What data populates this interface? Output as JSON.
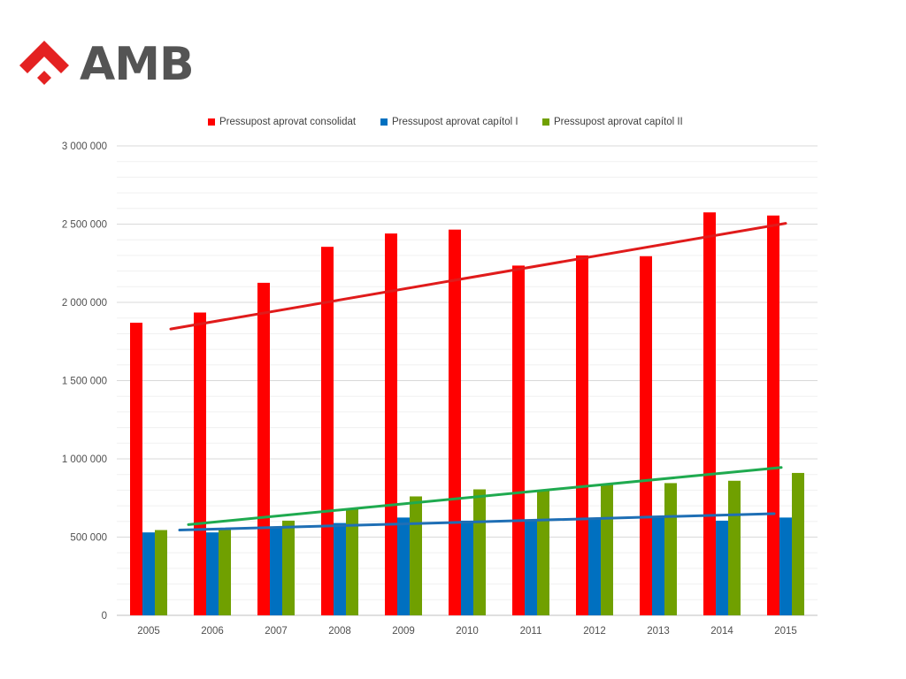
{
  "brand": {
    "logo_text": "AMB",
    "logo_color": "#e42121",
    "text_color": "#545454"
  },
  "chart_data": {
    "type": "bar",
    "title": "",
    "xlabel": "",
    "ylabel": "",
    "categories": [
      "2005",
      "2006",
      "2007",
      "2008",
      "2009",
      "2010",
      "2011",
      "2012",
      "2013",
      "2014",
      "2015"
    ],
    "ylim": [
      0,
      3000000
    ],
    "y_ticks": [
      0,
      500000,
      1000000,
      1500000,
      2000000,
      2500000,
      3000000
    ],
    "y_tick_labels": [
      "0",
      "500 000",
      "1 000 000",
      "1 500 000",
      "2 000 000",
      "2 500 000",
      "3 000 000"
    ],
    "grid": true,
    "minor_grid": true,
    "legend_position": "top",
    "series": [
      {
        "name": "Pressupost aprovat consolidat",
        "color": "#ff0000",
        "values": [
          1870000,
          1935000,
          2125000,
          2355000,
          2440000,
          2465000,
          2235000,
          2300000,
          2295000,
          2575000,
          2555000
        ]
      },
      {
        "name": "Pressupost aprovat capítol I",
        "color": "#0070c0",
        "values": [
          530000,
          530000,
          565000,
          590000,
          625000,
          605000,
          610000,
          620000,
          630000,
          605000,
          625000
        ]
      },
      {
        "name": "Pressupost aprovat capítol II",
        "color": "#70a000",
        "values": [
          545000,
          555000,
          605000,
          680000,
          760000,
          805000,
          800000,
          840000,
          845000,
          860000,
          910000
        ]
      }
    ],
    "trendlines": [
      {
        "series": "Pressupost aprovat consolidat",
        "color": "#e01b1b",
        "start": 1830000,
        "end": 2505000
      },
      {
        "series": "Pressupost aprovat capítol I",
        "color": "#1f6fb5",
        "start": 545000,
        "end": 650000
      },
      {
        "series": "Pressupost aprovat capítol II",
        "color": "#1faa4f",
        "start": 580000,
        "end": 945000
      }
    ]
  }
}
